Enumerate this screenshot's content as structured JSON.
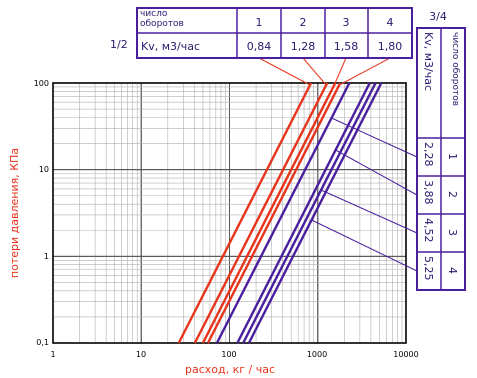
{
  "chart_data": {
    "type": "line",
    "title": "",
    "xlabel": "расход, кг / час",
    "ylabel": "потери давления, КПа",
    "x_scale": "log",
    "y_scale": "log",
    "xlim": [
      1,
      10000
    ],
    "ylim": [
      0.1,
      100
    ],
    "x_ticks": [
      "1",
      "10",
      "100",
      "1000",
      "10000"
    ],
    "y_ticks": [
      "100",
      "10",
      "1",
      "0,1"
    ],
    "grid": true,
    "series": [
      {
        "group": "1/2",
        "turns": "1",
        "kv": 0.84,
        "color": "#e8341c",
        "x": [
          26.6,
          840
        ],
        "y": [
          0.1,
          100
        ]
      },
      {
        "group": "1/2",
        "turns": "2",
        "kv": 1.28,
        "color": "#e8341c",
        "x": [
          40.5,
          1280
        ],
        "y": [
          0.1,
          100
        ]
      },
      {
        "group": "1/2",
        "turns": "3",
        "kv": 1.58,
        "color": "#e8341c",
        "x": [
          50,
          1580
        ],
        "y": [
          0.1,
          100
        ]
      },
      {
        "group": "1/2",
        "turns": "4",
        "kv": 1.8,
        "color": "#e8341c",
        "x": [
          57,
          1800
        ],
        "y": [
          0.1,
          100
        ]
      },
      {
        "group": "3/4",
        "turns": "1",
        "kv": 2.28,
        "color": "#4a1f9e",
        "x": [
          72,
          2280
        ],
        "y": [
          0.1,
          100
        ]
      },
      {
        "group": "3/4",
        "turns": "2",
        "kv": 3.88,
        "color": "#4a1f9e",
        "x": [
          122.7,
          3880
        ],
        "y": [
          0.1,
          100
        ]
      },
      {
        "group": "3/4",
        "turns": "3",
        "kv": 4.52,
        "color": "#4a1f9e",
        "x": [
          143,
          4520
        ],
        "y": [
          0.1,
          100
        ]
      },
      {
        "group": "3/4",
        "turns": "4",
        "kv": 5.25,
        "color": "#4a1f9e",
        "x": [
          166,
          5250
        ],
        "y": [
          0.1,
          100
        ]
      }
    ]
  },
  "table_12": {
    "label": "1/2",
    "row1_label": "число оборотов",
    "row2_label": "Kv, м3/час",
    "turns": [
      "1",
      "2",
      "3",
      "4"
    ],
    "kv": [
      "0,84",
      "1,28",
      "1,58",
      "1,80"
    ]
  },
  "table_34": {
    "label": "3/4",
    "col1_label": "число оборотов",
    "col2_label": "Kv, м3/час",
    "turns": [
      "1",
      "2",
      "3",
      "4"
    ],
    "kv": [
      "2,28",
      "3,88",
      "4,52",
      "5,25"
    ]
  },
  "colors": {
    "red": "#e8341c",
    "blue": "#4a1f9e",
    "grid": "#b0b0b0",
    "table": "#4a1f9e"
  }
}
